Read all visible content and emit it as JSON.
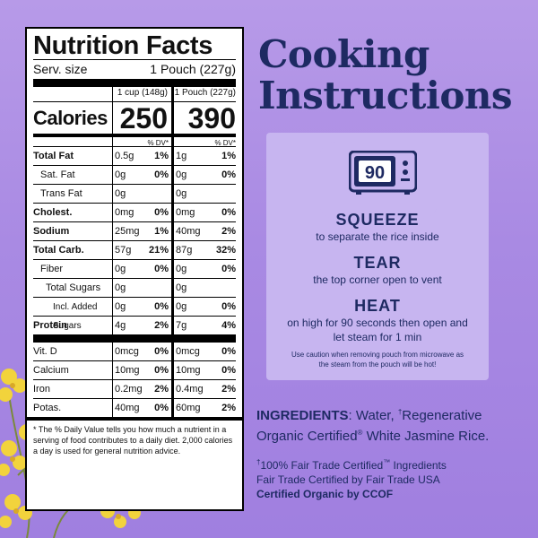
{
  "nutrition": {
    "title": "Nutrition Facts",
    "serv_label": "Serv. size",
    "serv_value": "1 Pouch (227g)",
    "col_a_header": "1 cup (148g)",
    "col_b_header": "1 Pouch (227g)",
    "calories_label": "Calories",
    "calories_a": "250",
    "calories_b": "390",
    "dv_header_a": "% DV*",
    "dv_header_b": "% DV*",
    "rows": [
      {
        "label": "Total Fat",
        "a": "0.5g",
        "ap": "1%",
        "b": "1g",
        "bp": "1%"
      },
      {
        "label": "Sat. Fat",
        "a": "0g",
        "ap": "0%",
        "b": "0g",
        "bp": "0%"
      },
      {
        "label": "Trans Fat",
        "a": "0g",
        "ap": "",
        "b": "0g",
        "bp": ""
      },
      {
        "label": "Cholest.",
        "a": "0mg",
        "ap": "0%",
        "b": "0mg",
        "bp": "0%"
      },
      {
        "label": "Sodium",
        "a": "25mg",
        "ap": "1%",
        "b": "40mg",
        "bp": "2%"
      },
      {
        "label": "Total Carb.",
        "a": "57g",
        "ap": "21%",
        "b": "87g",
        "bp": "32%"
      },
      {
        "label": "Fiber",
        "a": "0g",
        "ap": "0%",
        "b": "0g",
        "bp": "0%"
      },
      {
        "label": "Total Sugars",
        "a": "0g",
        "ap": "",
        "b": "0g",
        "bp": ""
      },
      {
        "label": "Incl. Added Sugars",
        "a": "0g",
        "ap": "0%",
        "b": "0g",
        "bp": "0%"
      },
      {
        "label": "Protein",
        "a": "4g",
        "ap": "2%",
        "b": "7g",
        "bp": "4%"
      }
    ],
    "vitamins": [
      {
        "label": "Vit. D",
        "a": "0mcg",
        "ap": "0%",
        "b": "0mcg",
        "bp": "0%"
      },
      {
        "label": "Calcium",
        "a": "10mg",
        "ap": "0%",
        "b": "10mg",
        "bp": "0%"
      },
      {
        "label": "Iron",
        "a": "0.2mg",
        "ap": "2%",
        "b": "0.4mg",
        "bp": "2%"
      },
      {
        "label": "Potas.",
        "a": "40mg",
        "ap": "0%",
        "b": "60mg",
        "bp": "2%"
      }
    ],
    "footnote": "* The % Daily Value tells you how much a nutrient in a serving of food contributes to a daily diet. 2,000 calories a day is used for general nutrition advice."
  },
  "cooking": {
    "title_line1": "Cooking",
    "title_line2": "Instructions",
    "microwave_display": "90",
    "steps": [
      {
        "heading": "SQUEEZE",
        "text": "to separate the rice inside"
      },
      {
        "heading": "TEAR",
        "text": "the top corner open to vent"
      },
      {
        "heading": "HEAT",
        "text": "on high for 90 seconds then open and let steam for 1 min"
      }
    ],
    "caution": "Use caution when removing pouch from microwave as the steam from the pouch will be hot!"
  },
  "ingredients": {
    "label": "INGREDIENTS",
    "text_1": ": Water, ",
    "dagger": "†",
    "text_2": "Regenerative Organic Certified",
    "reg": "®",
    "text_3": " White Jasmine Rice."
  },
  "fair_trade": {
    "line_1_dagger": "†",
    "line_1": "100% Fair Trade Certified",
    "tm": "™",
    "line_1_end": " Ingredients",
    "line_2": "Fair Trade Certified by Fair Trade USA",
    "line_3": "Certified Organic by CCOF"
  },
  "colors": {
    "background": "#a98ae3",
    "title_navy": "#1e2a62",
    "card_lavender": "#c7b5f0",
    "flower_yellow": "#f2d33c"
  }
}
